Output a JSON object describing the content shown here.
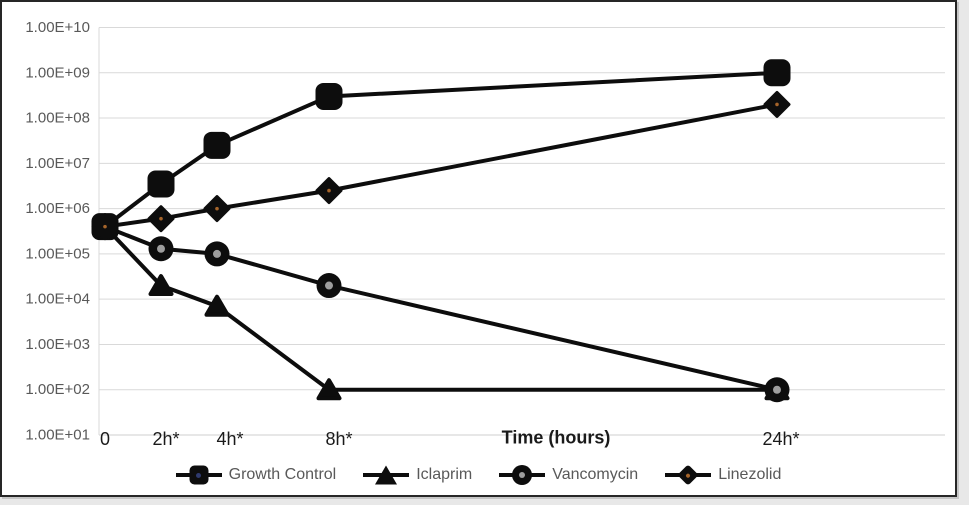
{
  "chart_data": {
    "type": "line",
    "title": "",
    "xlabel": "Time (hours)",
    "ylabel": "",
    "x_hours": [
      0,
      2,
      4,
      8,
      24
    ],
    "x_tick_labels": [
      "0",
      "2h*",
      "4h*",
      "8h*",
      "24h*"
    ],
    "y_axis": {
      "scale": "log10",
      "min": 10.0,
      "max": 10000000000.0,
      "tick_labels": [
        "1.00E+10",
        "1.00E+09",
        "1.00E+08",
        "1.00E+07",
        "1.00E+06",
        "1.00E+05",
        "1.00E+04",
        "1.00E+03",
        "1.00E+02",
        "1.00E+01"
      ]
    },
    "grid": true,
    "legend_position": "bottom",
    "series": [
      {
        "name": "Growth Control",
        "marker": "square",
        "values": [
          400000.0,
          3500000.0,
          25000000.0,
          300000000.0,
          1000000000.0
        ]
      },
      {
        "name": "Iclaprim",
        "marker": "triangle",
        "values": [
          400000.0,
          20000.0,
          7000.0,
          100.0,
          100.0
        ]
      },
      {
        "name": "Vancomycin",
        "marker": "circle",
        "values": [
          400000.0,
          130000.0,
          100000.0,
          20000.0,
          100.0
        ]
      },
      {
        "name": "Linezolid",
        "marker": "diamond",
        "values": [
          400000.0,
          600000.0,
          1000000.0,
          2500000.0,
          200000000.0
        ]
      }
    ]
  },
  "colors": {
    "series_line": "#0d0d0d",
    "gridline": "#d9d9d9",
    "axis_line": "#cfcfcf",
    "y_tick_label": "#595959",
    "x_tick_label": "#1a1a1a",
    "legend_text": "#595959",
    "circle_center_dot": "#9e9e9e",
    "diamond_center_dot": "#a5642a",
    "legend_square_dot": "#2f3a6e",
    "frame_border": "#262626",
    "outside_background": "#e8e8e8"
  }
}
